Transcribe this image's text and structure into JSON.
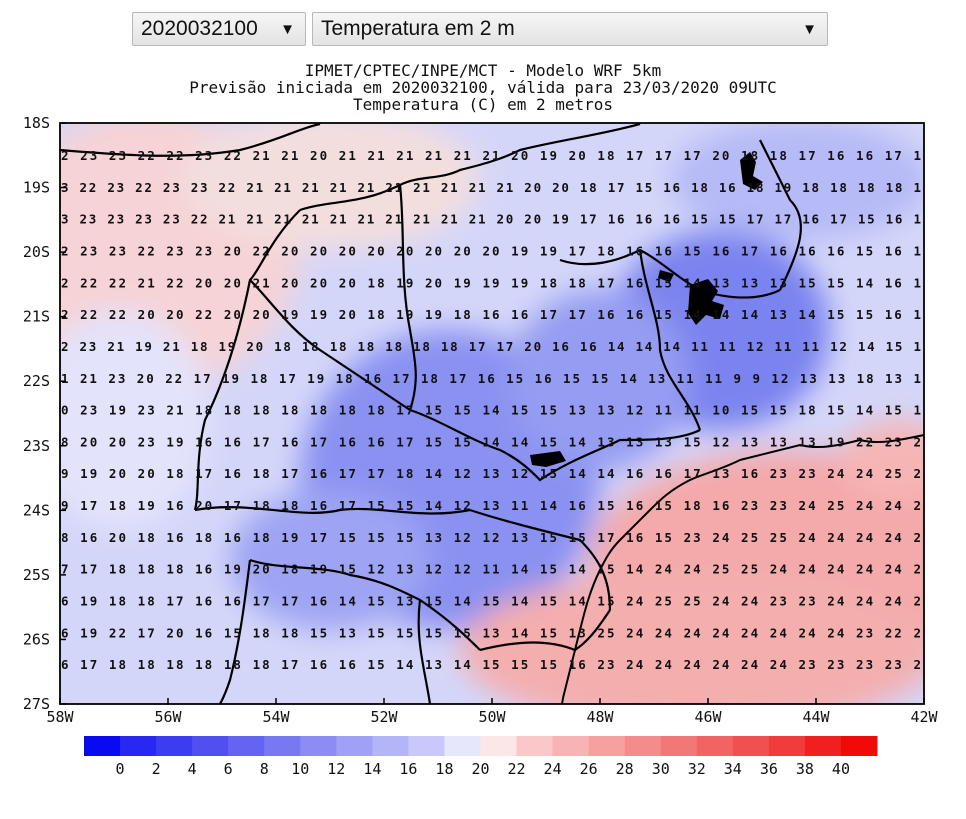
{
  "controls": {
    "date_select": "2020032100",
    "variable_select": "Temperatura em 2 m",
    "arrow": "▼"
  },
  "titles": {
    "line1": "IPMET/CPTEC/INPE/MCT - Modelo WRF 5km",
    "line2": "Previsão iniciada em 2020032100, válida para 23/03/2020 09UTC",
    "line3": "Temperatura (C) em 2 metros"
  },
  "map": {
    "lat_labels": [
      "18S",
      "19S",
      "20S",
      "21S",
      "22S",
      "23S",
      "24S",
      "25S",
      "26S",
      "27S"
    ],
    "lon_labels": [
      "58W",
      "56W",
      "54W",
      "52W",
      "50W",
      "48W",
      "46W",
      "44W",
      "42W"
    ],
    "colors": {
      "cold": "#6f79f0",
      "cool": "#c9ccf7",
      "neutral": "#ecebfb",
      "warm": "#f7c3c3",
      "hot": "#f5a6a6",
      "border": "#000000"
    },
    "grid_values": [
      "2 23 23 22 22 23 22 21 21 20 21 21 21 21 21 21 20 19 20 18 17 17 17 20 18 18 17 16 16 17 1",
      "3 22 23 22 23 23 22 21 21 21 21 21 21 21 21 21 21 20 20 18 17 15 16 18 16 18 19 18 18 18 18 1",
      "3 23 23 23 23 22 21 21 21 21 21 21 21 21 21 21 20 20 19 17 16 16 16 15 15 17 17 16 17 15 16 1",
      "2 23 23 22 23 23 20 22 20 20 20 20 20 20 20 20 19 19 17 18 16 16 15 16 17 16 16 16 15 16 1",
      "2 22 22 21 22 20 20 21 20 20 20 18 19 20 19 19 19 18 18 17 16 15 14 13 13 13 15 15 14 16 1",
      "2 22 22 20 20 22 20 20 19 19 20 18 19 19 18 16 16 17 17 16 16 15 14 14 14 13 14 15 15 16 1",
      "2 23 21 19 21 18 19 20 18 18 18 18 18 18 18 17 17 20 16 16 14 14 14 11 11 12 11 11 12 14 15 1",
      "1 21 23 20 22 17 19 18 17 19 18 16 17 18 17 16 15 16 15 15 14 13 11 11 9 9 12 13 13 18 13 1",
      "0 23 19 23 21 18 18 18 18 18 18 18 17 15 15 14 15 15 13 13 12 11 11 10 15 15 18 15 14 15 1",
      "8 20 20 23 19 16 16 17 16 17 16 16 17 15 15 14 14 15 14 13 13 13 15 12 13 13 13 19 22 23 2",
      "9 19 20 20 18 17 16 18 17 16 17 17 18 14 12 13 12 15 14 14 16 16 17 13 16 23 23 24 24 25 2",
      "9 17 18 19 16 20 17 18 18 16 17 15 15 14 12 13 11 14 16 15 16 15 18 16 23 23 24 25 24 24 2",
      "8 16 20 18 16 18 16 18 19 17 15 15 15 13 12 12 13 15 15 17 16 15 23 24 25 25 24 24 24 24 2",
      "7 17 18 18 18 16 19 20 18 19 15 12 13 12 12 11 14 15 14 15 14 24 24 25 25 24 24 24 24 24 2",
      "6 19 18 18 17 16 16 17 17 16 14 15 13 15 14 15 14 15 14 15 24 25 25 24 24 23 23 24 24 24 2",
      "6 19 22 17 20 16 15 18 18 15 13 15 15 15 15 13 14 15 13 25 24 24 24 24 24 24 24 24 23 22 2",
      "6 17 18 18 18 18 18 18 17 16 16 15 14 13 14 15 15 15 16 23 24 24 24 24 24 24 23 23 23 23 2"
    ],
    "colorbar_labels": [
      "0",
      "2",
      "4",
      "6",
      "8",
      "10",
      "12",
      "14",
      "16",
      "18",
      "20",
      "22",
      "24",
      "26",
      "28",
      "30",
      "32",
      "34",
      "36",
      "38",
      "40"
    ],
    "colorbar_colors": [
      "#0a0af0",
      "#2828f2",
      "#3c3cf0",
      "#5050f0",
      "#6464f2",
      "#7878f2",
      "#8c8cf4",
      "#a0a0f6",
      "#b4b4f8",
      "#c8c8fa",
      "#e6e6fc",
      "#fce6e6",
      "#fac8c8",
      "#f8b4b4",
      "#f6a0a0",
      "#f48c8c",
      "#f27878",
      "#f26464",
      "#f05050",
      "#f03c3c",
      "#f02020",
      "#f00a0a"
    ]
  }
}
